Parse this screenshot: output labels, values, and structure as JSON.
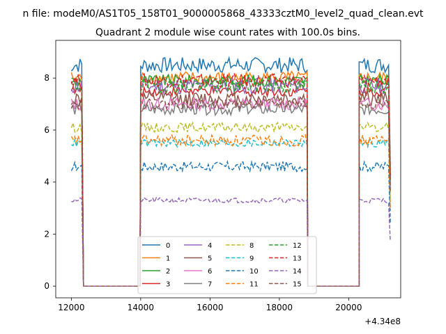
{
  "figure": {
    "suptitle": "n file: modeM0/AS1T05_158T01_9000005868_43333cztM0_level2_quad_clean.evt",
    "title": "Quadrant 2 module wise count rates with 100.0s bins.",
    "offset_label": "+4.34e8"
  },
  "chart_data": {
    "type": "line",
    "title": "Quadrant 2 module wise count rates with 100.0s bins.",
    "xlabel": "",
    "ylabel": "",
    "x_offset": 434000000,
    "xlim": [
      11550,
      21500
    ],
    "ylim": [
      -0.45,
      9.45
    ],
    "xticks": [
      12000,
      14000,
      16000,
      18000,
      20000
    ],
    "yticks": [
      0,
      2,
      4,
      6,
      8
    ],
    "xtick_labels": [
      "12000",
      "14000",
      "16000",
      "18000",
      "20000"
    ],
    "ytick_labels": [
      "0",
      "2",
      "4",
      "6",
      "8"
    ],
    "grid": false,
    "legend": {
      "placement": "lower center",
      "ncol": 4
    },
    "segments": [
      {
        "start": 12000,
        "end": 12300
      },
      {
        "start": 14000,
        "end": 18800
      },
      {
        "start": 20300,
        "end": 21200
      }
    ],
    "series": [
      {
        "name": "0",
        "color": "#1f77b4",
        "dash": "solid",
        "level": 8.5
      },
      {
        "name": "1",
        "color": "#ff7f0e",
        "dash": "solid",
        "level": 8.0
      },
      {
        "name": "2",
        "color": "#2ca02c",
        "dash": "solid",
        "level": 7.9
      },
      {
        "name": "3",
        "color": "#d62728",
        "dash": "solid",
        "level": 7.5
      },
      {
        "name": "4",
        "color": "#9467bd",
        "dash": "solid",
        "level": 7.7
      },
      {
        "name": "5",
        "color": "#8c564b",
        "dash": "solid",
        "level": 7.2
      },
      {
        "name": "6",
        "color": "#e377c2",
        "dash": "solid",
        "level": 7.0
      },
      {
        "name": "7",
        "color": "#7f7f7f",
        "dash": "solid",
        "level": 6.8
      },
      {
        "name": "8",
        "color": "#bcbd22",
        "dash": "dashed",
        "level": 6.1
      },
      {
        "name": "9",
        "color": "#17becf",
        "dash": "dashed",
        "level": 5.5
      },
      {
        "name": "10",
        "color": "#1f77b4",
        "dash": "dashed",
        "level": 4.6
      },
      {
        "name": "11",
        "color": "#ff7f0e",
        "dash": "dashed",
        "level": 5.6
      },
      {
        "name": "12",
        "color": "#2ca02c",
        "dash": "dashed",
        "level": 7.7
      },
      {
        "name": "13",
        "color": "#d62728",
        "dash": "dashed",
        "level": 7.9
      },
      {
        "name": "14",
        "color": "#9467bd",
        "dash": "dashed",
        "level": 3.3
      },
      {
        "name": "15",
        "color": "#8c564b",
        "dash": "dashed",
        "level": 7.0
      }
    ]
  }
}
